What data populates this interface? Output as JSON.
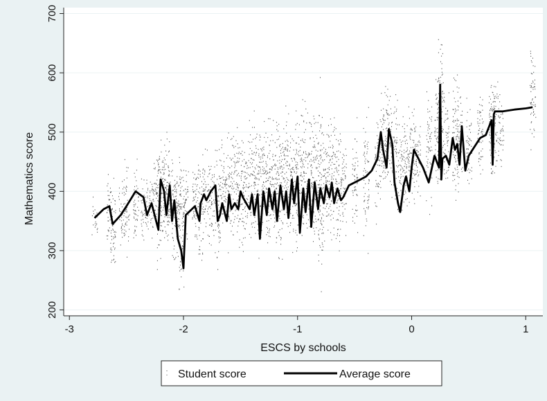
{
  "chart_data": {
    "type": "scatter",
    "title": "",
    "xlabel": "ESCS by schools",
    "ylabel": "Mathematics score",
    "xlim": [
      -3.05,
      1.15
    ],
    "ylim": [
      190,
      710
    ],
    "x_ticks": [
      -3,
      -2,
      -1,
      0,
      1
    ],
    "y_ticks": [
      200,
      300,
      400,
      500,
      600,
      700
    ],
    "x_tick_labels": [
      "-3",
      "-2",
      "-1",
      "0",
      "1"
    ],
    "y_tick_labels": [
      "200",
      "300",
      "400",
      "500",
      "600",
      "700"
    ],
    "grid": "horizontal",
    "legend": {
      "position": "bottom",
      "entries": [
        "Student score",
        "Average score"
      ]
    },
    "colors": {
      "background": "#eaf2f3",
      "plot": "#ffffff",
      "grid": "#eaf2f3",
      "points": "#555555",
      "line": "#000000"
    },
    "series": [
      {
        "name": "Student score",
        "kind": "scatter-columns",
        "note_columns": "each column = one school: [ESCS x, min score, max score]",
        "columns": [
          [
            -2.78,
            310,
            395
          ],
          [
            -2.65,
            275,
            455
          ],
          [
            -2.62,
            240,
            440
          ],
          [
            -2.55,
            300,
            430
          ],
          [
            -2.5,
            265,
            470
          ],
          [
            -2.42,
            290,
            480
          ],
          [
            -2.35,
            300,
            440
          ],
          [
            -2.3,
            310,
            460
          ],
          [
            -2.25,
            320,
            470
          ],
          [
            -2.22,
            245,
            525
          ],
          [
            -2.18,
            290,
            500
          ],
          [
            -2.15,
            280,
            520
          ],
          [
            -2.12,
            300,
            470
          ],
          [
            -2.08,
            240,
            500
          ],
          [
            -2.05,
            270,
            480
          ],
          [
            -2.02,
            210,
            470
          ],
          [
            -1.98,
            300,
            460
          ],
          [
            -1.9,
            280,
            490
          ],
          [
            -1.85,
            250,
            500
          ],
          [
            -1.8,
            300,
            500
          ],
          [
            -1.75,
            290,
            480
          ],
          [
            -1.7,
            235,
            510
          ],
          [
            -1.65,
            300,
            520
          ],
          [
            -1.6,
            280,
            520
          ],
          [
            -1.55,
            290,
            540
          ],
          [
            -1.5,
            270,
            550
          ],
          [
            -1.45,
            300,
            520
          ],
          [
            -1.4,
            290,
            560
          ],
          [
            -1.35,
            260,
            575
          ],
          [
            -1.3,
            300,
            550
          ],
          [
            -1.25,
            270,
            540
          ],
          [
            -1.2,
            290,
            560
          ],
          [
            -1.15,
            250,
            550
          ],
          [
            -1.1,
            300,
            560
          ],
          [
            -1.05,
            270,
            550
          ],
          [
            -1.0,
            260,
            580
          ],
          [
            -0.95,
            280,
            575
          ],
          [
            -0.9,
            290,
            560
          ],
          [
            -0.85,
            270,
            570
          ],
          [
            -0.8,
            195,
            635
          ],
          [
            -0.75,
            280,
            550
          ],
          [
            -0.7,
            290,
            560
          ],
          [
            -0.65,
            270,
            540
          ],
          [
            -0.6,
            300,
            520
          ],
          [
            -0.5,
            310,
            540
          ],
          [
            -0.4,
            280,
            560
          ],
          [
            -0.3,
            320,
            560
          ],
          [
            -0.25,
            350,
            615
          ],
          [
            -0.2,
            360,
            600
          ],
          [
            -0.15,
            370,
            580
          ],
          [
            -0.1,
            340,
            560
          ],
          [
            -0.05,
            330,
            570
          ],
          [
            0.0,
            350,
            580
          ],
          [
            0.05,
            360,
            560
          ],
          [
            0.15,
            350,
            590
          ],
          [
            0.22,
            380,
            620
          ],
          [
            0.25,
            370,
            700
          ],
          [
            0.3,
            390,
            600
          ],
          [
            0.38,
            350,
            640
          ],
          [
            0.42,
            380,
            600
          ],
          [
            0.5,
            380,
            580
          ],
          [
            0.6,
            400,
            610
          ],
          [
            0.7,
            365,
            630
          ],
          [
            0.73,
            400,
            625
          ],
          [
            0.78,
            430,
            590
          ],
          [
            1.06,
            445,
            680
          ]
        ]
      },
      {
        "name": "Average score",
        "kind": "line",
        "x": [
          -2.78,
          -2.7,
          -2.65,
          -2.62,
          -2.55,
          -2.5,
          -2.42,
          -2.35,
          -2.32,
          -2.28,
          -2.24,
          -2.22,
          -2.2,
          -2.17,
          -2.15,
          -2.12,
          -2.1,
          -2.08,
          -2.05,
          -2.02,
          -2.0,
          -1.98,
          -1.9,
          -1.86,
          -1.85,
          -1.82,
          -1.8,
          -1.76,
          -1.72,
          -1.7,
          -1.68,
          -1.66,
          -1.62,
          -1.6,
          -1.58,
          -1.55,
          -1.52,
          -1.5,
          -1.48,
          -1.45,
          -1.42,
          -1.4,
          -1.38,
          -1.35,
          -1.33,
          -1.3,
          -1.27,
          -1.25,
          -1.22,
          -1.2,
          -1.18,
          -1.15,
          -1.12,
          -1.1,
          -1.08,
          -1.05,
          -1.03,
          -1.0,
          -0.98,
          -0.95,
          -0.93,
          -0.9,
          -0.88,
          -0.85,
          -0.82,
          -0.8,
          -0.77,
          -0.75,
          -0.72,
          -0.7,
          -0.68,
          -0.65,
          -0.62,
          -0.6,
          -0.55,
          -0.5,
          -0.45,
          -0.4,
          -0.35,
          -0.3,
          -0.27,
          -0.25,
          -0.22,
          -0.2,
          -0.17,
          -0.15,
          -0.12,
          -0.1,
          -0.07,
          -0.05,
          -0.02,
          0.0,
          0.02,
          0.1,
          0.15,
          0.2,
          0.24,
          0.25,
          0.26,
          0.27,
          0.3,
          0.33,
          0.36,
          0.38,
          0.4,
          0.42,
          0.44,
          0.47,
          0.5,
          0.6,
          0.65,
          0.7,
          0.71,
          0.72,
          0.73,
          0.75,
          0.8,
          0.9,
          1.0,
          1.06
        ],
        "y": [
          355,
          370,
          375,
          345,
          360,
          375,
          400,
          390,
          360,
          380,
          350,
          335,
          420,
          400,
          360,
          410,
          350,
          385,
          320,
          300,
          270,
          360,
          375,
          350,
          380,
          395,
          385,
          400,
          410,
          350,
          360,
          380,
          350,
          395,
          370,
          380,
          370,
          400,
          390,
          380,
          370,
          395,
          360,
          395,
          320,
          400,
          360,
          405,
          370,
          400,
          350,
          410,
          370,
          400,
          355,
          420,
          380,
          425,
          330,
          405,
          365,
          420,
          340,
          415,
          370,
          405,
          380,
          410,
          390,
          415,
          380,
          405,
          385,
          390,
          410,
          415,
          420,
          425,
          435,
          455,
          500,
          470,
          440,
          505,
          480,
          415,
          380,
          365,
          410,
          425,
          400,
          440,
          470,
          440,
          415,
          460,
          440,
          580,
          420,
          455,
          460,
          445,
          490,
          470,
          480,
          445,
          510,
          435,
          460,
          490,
          495,
          520,
          445,
          530,
          535,
          535,
          535,
          538,
          540,
          542
        ]
      }
    ]
  }
}
